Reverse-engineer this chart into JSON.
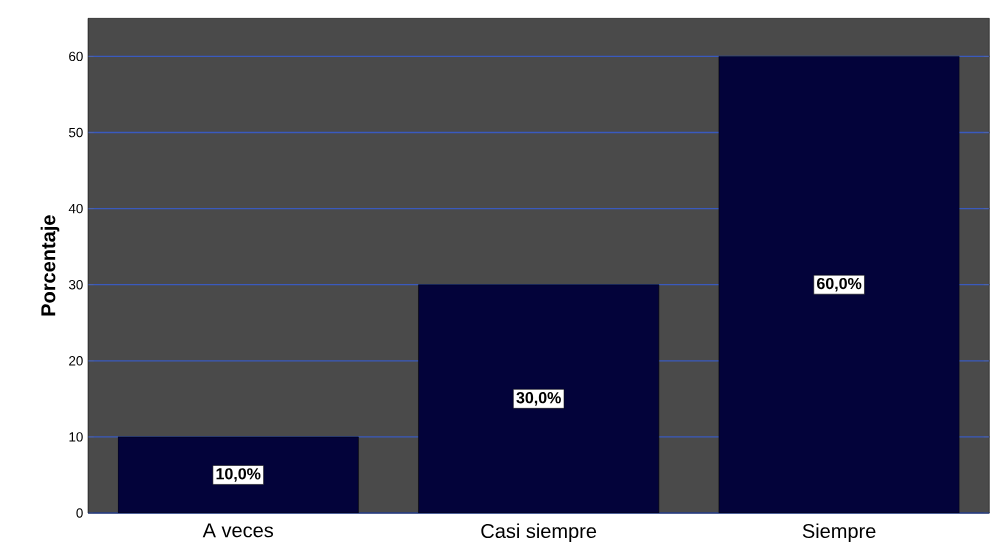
{
  "chart_data": {
    "type": "bar",
    "ylabel": "Porcentaje",
    "categories": [
      "A veces",
      "Casi siempre",
      "Siempre"
    ],
    "values": [
      10,
      30,
      60
    ],
    "value_labels": [
      "10,0%",
      "30,0%",
      "60,0%"
    ],
    "color": "#03033a",
    "ylim": [
      0,
      65
    ],
    "yticks": [
      0,
      10,
      20,
      30,
      40,
      50,
      60
    ],
    "grid": "y"
  }
}
